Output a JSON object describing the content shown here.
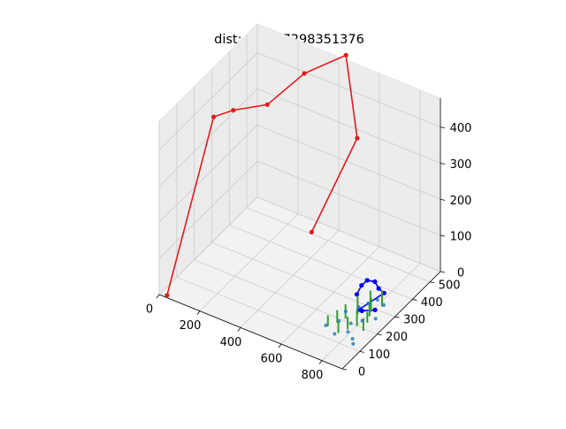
{
  "figure": {
    "title": "dist: 889.67298351376"
  },
  "chart_data": {
    "type": "scatter",
    "projection": "3d",
    "title": "dist: 889.67298351376",
    "xlabel": "",
    "ylabel": "",
    "zlabel": "",
    "xlim": [
      0,
      900
    ],
    "ylim": [
      0,
      560
    ],
    "zlim": [
      0,
      480
    ],
    "grid": true,
    "legend": "none",
    "x_ticks": [
      "0",
      "200",
      "400",
      "600",
      "800"
    ],
    "y_ticks": [
      "0",
      "100",
      "200",
      "300",
      "400",
      "500"
    ],
    "z_ticks": [
      "0",
      "100",
      "200",
      "300",
      "400"
    ],
    "colors": {
      "route": "#e41a1c",
      "subroute": "#0000ff",
      "bars": "#2ca02c",
      "points": "#1f77b4",
      "pane": "#f2f2f2",
      "grid": "#cccccc"
    },
    "series": [
      {
        "style": "route",
        "x": [
          30,
          35,
          80,
          230,
          300,
          470,
          560,
          560
        ],
        "y": [
          10,
          270,
          330,
          350,
          480,
          520,
          480,
          220
        ],
        "z": [
          0,
          370,
          370,
          410,
          450,
          520,
          330,
          195
        ]
      },
      {
        "style": "subroute",
        "x": [
          765,
          775,
          790,
          815,
          820,
          830,
          800,
          790,
          820
        ],
        "y": [
          240,
          255,
          270,
          285,
          300,
          320,
          210,
          240,
          280
        ],
        "z": [
          60,
          80,
          90,
          85,
          60,
          40,
          40,
          20,
          10
        ]
      },
      {
        "style": "bars",
        "x": [
          700,
          720,
          735,
          760,
          780,
          800,
          810,
          825,
          840,
          760,
          780,
          800,
          820
        ],
        "y": [
          150,
          180,
          210,
          140,
          170,
          200,
          260,
          230,
          190,
          250,
          300,
          280,
          320
        ],
        "z": [
          30,
          35,
          40,
          30,
          35,
          45,
          40,
          30,
          35,
          50,
          45,
          40,
          45
        ]
      },
      {
        "style": "points",
        "x": [
          690,
          720,
          750,
          790,
          830,
          850,
          710,
          740,
          770,
          800,
          760,
          820,
          840,
          780
        ],
        "y": [
          150,
          190,
          130,
          160,
          140,
          120,
          240,
          280,
          200,
          230,
          310,
          330,
          260,
          340
        ],
        "z": [
          0,
          0,
          0,
          0,
          0,
          0,
          0,
          0,
          0,
          0,
          0,
          0,
          0,
          0
        ]
      }
    ]
  }
}
